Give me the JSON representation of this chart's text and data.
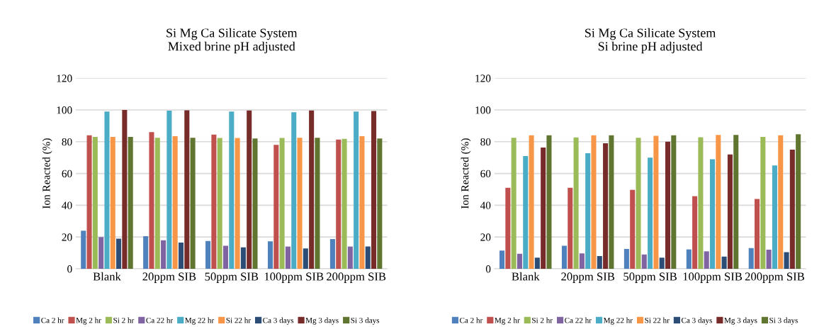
{
  "chart_data": [
    {
      "type": "bar",
      "title": "Si Mg Ca Silicate System\nMixed brine pH adjusted",
      "ylabel": "Ion Reacted (%)",
      "categories": [
        "Blank",
        "20ppm SIB",
        "50ppm SIB",
        "100ppm SIB",
        "200ppm SIB"
      ],
      "ylim": [
        0,
        120
      ],
      "yticks": [
        0,
        20,
        40,
        60,
        80,
        100,
        120
      ],
      "grid": "y",
      "legend": "bottom",
      "series": [
        {
          "name": "Ca 2 hr",
          "color": "#4f81bd",
          "values": [
            24,
            20.5,
            17.5,
            17.3,
            18.7
          ]
        },
        {
          "name": "Mg 2 hr",
          "color": "#c0504d",
          "values": [
            84,
            86,
            84.5,
            78,
            81.3
          ]
        },
        {
          "name": "Si 2 hr",
          "color": "#9bbb59",
          "values": [
            83,
            82.5,
            82.3,
            82.3,
            81.8
          ]
        },
        {
          "name": "Ca 22 hr",
          "color": "#8064a2",
          "values": [
            20,
            18,
            14.5,
            14,
            14
          ]
        },
        {
          "name": "Mg 22 hr",
          "color": "#4bacc6",
          "values": [
            99,
            99.5,
            99,
            98.5,
            99
          ]
        },
        {
          "name": "Si 22 hr",
          "color": "#f79646",
          "values": [
            83,
            83.5,
            82.3,
            82.5,
            83.5
          ]
        },
        {
          "name": "Ca 3 days",
          "color": "#2c4d75",
          "values": [
            19,
            16.5,
            13.5,
            12.8,
            14
          ]
        },
        {
          "name": "Mg 3 days",
          "color": "#772c2a",
          "values": [
            100,
            99.8,
            99.7,
            99.7,
            99.3
          ]
        },
        {
          "name": "Si 3 days",
          "color": "#5f7530",
          "values": [
            83,
            82.5,
            82,
            82.5,
            82
          ]
        }
      ]
    },
    {
      "type": "bar",
      "title": "Si Mg Ca Silicate System\nSi brine pH adjusted",
      "ylabel": "Ion Reacted (%)",
      "categories": [
        "Blank",
        "20ppm SIB",
        "50ppm SIB",
        "100ppm SIB",
        "200ppm SIB"
      ],
      "ylim": [
        0,
        120
      ],
      "yticks": [
        0,
        20,
        40,
        60,
        80,
        100,
        120
      ],
      "grid": "y",
      "legend": "bottom",
      "series": [
        {
          "name": "Ca 2 hr",
          "color": "#4f81bd",
          "values": [
            11.5,
            14.5,
            12.5,
            12.2,
            13
          ]
        },
        {
          "name": "Mg 2 hr",
          "color": "#c0504d",
          "values": [
            51,
            51,
            49.7,
            45.7,
            44
          ]
        },
        {
          "name": "Si 2 hr",
          "color": "#9bbb59",
          "values": [
            82.5,
            82.7,
            82.5,
            82.8,
            83
          ]
        },
        {
          "name": "Ca 22 hr",
          "color": "#8064a2",
          "values": [
            9.5,
            9.7,
            9,
            11,
            12
          ]
        },
        {
          "name": "Mg 22 hr",
          "color": "#4bacc6",
          "values": [
            71,
            72.7,
            70,
            69,
            65
          ]
        },
        {
          "name": "Si 22 hr",
          "color": "#f79646",
          "values": [
            84,
            84,
            83.7,
            84.3,
            84
          ]
        },
        {
          "name": "Ca 3 days",
          "color": "#2c4d75",
          "values": [
            7,
            8,
            7,
            7.7,
            10.5
          ]
        },
        {
          "name": "Mg 3 days",
          "color": "#772c2a",
          "values": [
            76.3,
            79,
            80,
            72,
            75
          ]
        },
        {
          "name": "Si 3 days",
          "color": "#5f7530",
          "values": [
            84,
            84,
            84,
            84.3,
            84.7
          ]
        }
      ]
    }
  ]
}
